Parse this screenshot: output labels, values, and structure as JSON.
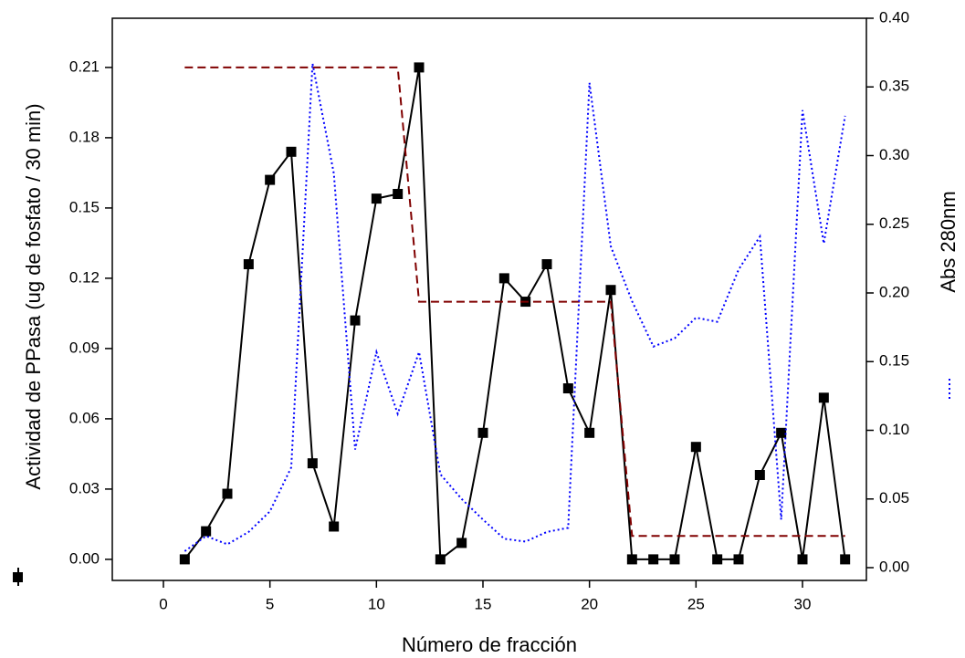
{
  "chart_data": {
    "type": "line",
    "x_label": "Número de fracción",
    "y_label": "Actividad de PPasa (ug de fosfato / 30 min)",
    "y2_label": "Abs 280nm",
    "xlim": [
      -2.4,
      33
    ],
    "xticks": [
      0,
      5,
      10,
      15,
      20,
      25,
      30
    ],
    "ylim": [
      -0.009,
      0.231
    ],
    "yticks": [
      {
        "value": 0,
        "label": "0.00"
      },
      {
        "value": 0.03,
        "label": "0.03"
      },
      {
        "value": 0.06,
        "label": "0.06"
      },
      {
        "value": 0.09,
        "label": "0.09"
      },
      {
        "value": 0.12,
        "label": "0.12"
      },
      {
        "value": 0.15,
        "label": "0.15"
      },
      {
        "value": 0.18,
        "label": "0.18"
      },
      {
        "value": 0.21,
        "label": "0.21"
      }
    ],
    "y2lim": [
      -0.0093,
      0.4
    ],
    "y2ticks": [
      {
        "value": 0,
        "label": "0.00"
      },
      {
        "value": 0.05,
        "label": "0.05"
      },
      {
        "value": 0.1,
        "label": "0.10"
      },
      {
        "value": 0.15,
        "label": "0.15"
      },
      {
        "value": 0.2,
        "label": "0.20"
      },
      {
        "value": 0.25,
        "label": "0.25"
      },
      {
        "value": 0.3,
        "label": "0.30"
      },
      {
        "value": 0.35,
        "label": "0.35"
      },
      {
        "value": 0.4,
        "label": "0.40"
      }
    ],
    "series": [
      {
        "color": "#000000",
        "line_style": "solid",
        "marker": "square",
        "x": [
          1,
          2,
          3,
          4,
          5,
          6,
          7,
          8,
          9,
          10,
          11,
          12,
          13,
          14,
          15,
          16,
          17,
          18,
          19,
          20,
          21,
          22,
          23,
          24,
          25,
          26,
          27,
          28,
          29,
          30,
          31,
          32
        ],
        "values": [
          0,
          0.012,
          0.028,
          0.126,
          0.162,
          0.174,
          0.041,
          0.014,
          0.102,
          0.154,
          0.156,
          0.21,
          0,
          0.007,
          0.054,
          0.12,
          0.11,
          0.126,
          0.073,
          0.054,
          0.115,
          0,
          0,
          0,
          0.048,
          0,
          0,
          0.036,
          0.054,
          0,
          0.069,
          0
        ]
      },
      {
        "color": "#800000",
        "line_style": "dashed",
        "x": [
          1,
          11,
          12,
          21,
          22,
          32
        ],
        "values": [
          0.21,
          0.21,
          0.11,
          0.11,
          0.01,
          0.01
        ]
      },
      {
        "color": "#0000ff",
        "line_style": "dotted",
        "axis": "y2",
        "x": [
          1,
          2,
          3,
          4,
          5,
          6,
          7,
          8,
          9,
          10,
          11,
          12,
          13,
          14,
          15,
          16,
          17,
          18,
          19,
          20,
          21,
          22,
          23,
          24,
          25,
          26,
          27,
          28,
          29,
          30,
          31,
          32
        ],
        "values": [
          0.012,
          0.023,
          0.017,
          0.026,
          0.041,
          0.073,
          0.367,
          0.287,
          0.086,
          0.157,
          0.112,
          0.157,
          0.068,
          0.05,
          0.035,
          0.021,
          0.019,
          0.026,
          0.029,
          0.353,
          0.234,
          0.194,
          0.161,
          0.167,
          0.182,
          0.179,
          0.217,
          0.241,
          0.035,
          0.333,
          0.236,
          0.329
        ]
      }
    ]
  }
}
